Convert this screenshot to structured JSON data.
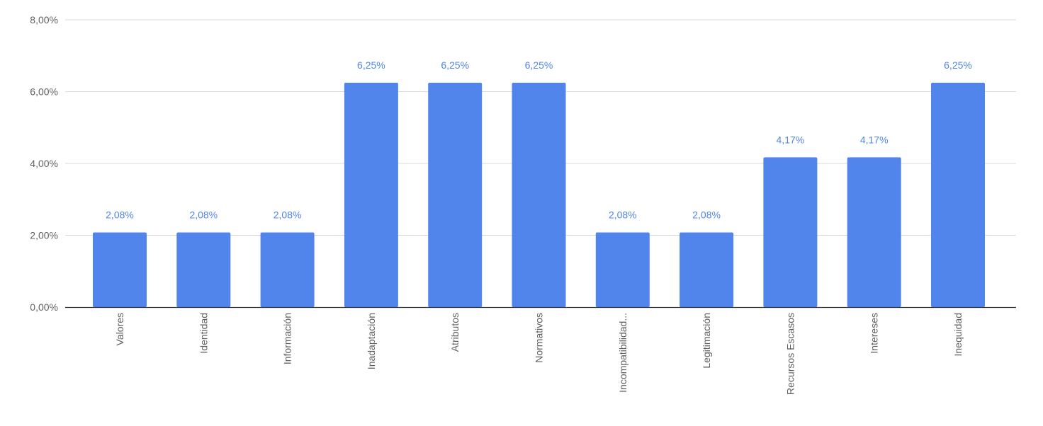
{
  "chart_data": {
    "type": "bar",
    "categories": [
      "Valores",
      "Identidad",
      "Información",
      "Inadaptación",
      "Atributos",
      "Normativos",
      "Incompatibilidad...",
      "Legitimación",
      "Recursos Escasos",
      "Intereses",
      "Inequidad"
    ],
    "values": [
      2.08,
      2.08,
      2.08,
      6.25,
      6.25,
      6.25,
      2.08,
      2.08,
      4.17,
      4.17,
      6.25
    ],
    "data_labels": [
      "2,08%",
      "2,08%",
      "2,08%",
      "6,25%",
      "6,25%",
      "6,25%",
      "2,08%",
      "2,08%",
      "4,17%",
      "4,17%",
      "6,25%"
    ],
    "title": "",
    "xlabel": "",
    "ylabel": "",
    "ylim": [
      0,
      8
    ],
    "yticks": [
      0,
      2,
      4,
      6,
      8
    ],
    "ytick_labels": [
      "0,00%",
      "2,00%",
      "4,00%",
      "6,00%",
      "8,00%"
    ],
    "grid": true,
    "legend": "none",
    "colors": {
      "bar": "#5285ec",
      "data_label": "#5285ec",
      "gridline": "#d9d9d9",
      "axis": "#333333"
    }
  }
}
